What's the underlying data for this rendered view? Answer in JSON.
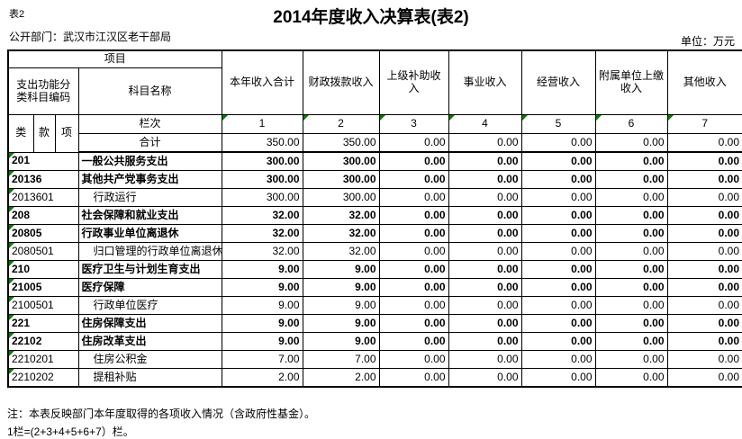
{
  "page": {
    "table_tag": "表2",
    "title": "2014年度收入决算表(表2)",
    "department": "公开部门：武汉市江汉区老干部局",
    "unit": "单位：万元"
  },
  "header": {
    "project": "项目",
    "code_label": "支出功能分类科目编码",
    "subject_name": "科目名称",
    "code_cols": [
      "类",
      "款",
      "项"
    ],
    "row_label": "栏次",
    "value_cols": [
      "本年收入合计",
      "财政拨款收入",
      "上级补助收入",
      "事业收入",
      "经营收入",
      "附属单位上缴收入",
      "其他收入"
    ],
    "col_numbers": [
      "1",
      "2",
      "3",
      "4",
      "5",
      "6",
      "7"
    ]
  },
  "total": {
    "label": "合计",
    "values": [
      "350.00",
      "350.00",
      "0.00",
      "0.00",
      "0.00",
      "0.00",
      "0.00"
    ]
  },
  "rows": [
    {
      "code": "201",
      "name": "一般公共服务支出",
      "bold": true,
      "indent": false,
      "values": [
        "300.00",
        "300.00",
        "0.00",
        "0.00",
        "0.00",
        "0.00",
        "0.00"
      ]
    },
    {
      "code": "20136",
      "name": "其他共产党事务支出",
      "bold": true,
      "indent": false,
      "values": [
        "300.00",
        "300.00",
        "0.00",
        "0.00",
        "0.00",
        "0.00",
        "0.00"
      ]
    },
    {
      "code": "2013601",
      "name": "行政运行",
      "bold": false,
      "indent": true,
      "values": [
        "300.00",
        "300.00",
        "0.00",
        "0.00",
        "0.00",
        "0.00",
        "0.00"
      ]
    },
    {
      "code": "208",
      "name": "社会保障和就业支出",
      "bold": true,
      "indent": false,
      "values": [
        "32.00",
        "32.00",
        "0.00",
        "0.00",
        "0.00",
        "0.00",
        "0.00"
      ]
    },
    {
      "code": "20805",
      "name": "行政事业单位离退休",
      "bold": true,
      "indent": false,
      "values": [
        "32.00",
        "32.00",
        "0.00",
        "0.00",
        "0.00",
        "0.00",
        "0.00"
      ]
    },
    {
      "code": "2080501",
      "name": "归口管理的行政单位离退休",
      "bold": false,
      "indent": true,
      "values": [
        "32.00",
        "32.00",
        "0.00",
        "0.00",
        "0.00",
        "0.00",
        "0.00"
      ]
    },
    {
      "code": "210",
      "name": "医疗卫生与计划生育支出",
      "bold": true,
      "indent": false,
      "values": [
        "9.00",
        "9.00",
        "0.00",
        "0.00",
        "0.00",
        "0.00",
        "0.00"
      ]
    },
    {
      "code": "21005",
      "name": "医疗保障",
      "bold": true,
      "indent": false,
      "values": [
        "9.00",
        "9.00",
        "0.00",
        "0.00",
        "0.00",
        "0.00",
        "0.00"
      ]
    },
    {
      "code": "2100501",
      "name": "行政单位医疗",
      "bold": false,
      "indent": true,
      "values": [
        "9.00",
        "9.00",
        "0.00",
        "0.00",
        "0.00",
        "0.00",
        "0.00"
      ]
    },
    {
      "code": "221",
      "name": "住房保障支出",
      "bold": true,
      "indent": false,
      "values": [
        "9.00",
        "9.00",
        "0.00",
        "0.00",
        "0.00",
        "0.00",
        "0.00"
      ]
    },
    {
      "code": "22102",
      "name": "住房改革支出",
      "bold": true,
      "indent": false,
      "values": [
        "9.00",
        "9.00",
        "0.00",
        "0.00",
        "0.00",
        "0.00",
        "0.00"
      ]
    },
    {
      "code": "2210201",
      "name": "住房公积金",
      "bold": false,
      "indent": true,
      "values": [
        "7.00",
        "7.00",
        "0.00",
        "0.00",
        "0.00",
        "0.00",
        "0.00"
      ]
    },
    {
      "code": "2210202",
      "name": "提租补贴",
      "bold": false,
      "indent": true,
      "values": [
        "2.00",
        "2.00",
        "0.00",
        "0.00",
        "0.00",
        "0.00",
        "0.00"
      ]
    }
  ],
  "notes": [
    "注：本表反映部门本年度取得的各项收入情况（含政府性基金）。",
    "1栏=(2+3+4+5+6+7）栏。"
  ],
  "colors": {
    "flag_triangle": "#008000",
    "border": "#000000",
    "background": "#ffffff"
  }
}
